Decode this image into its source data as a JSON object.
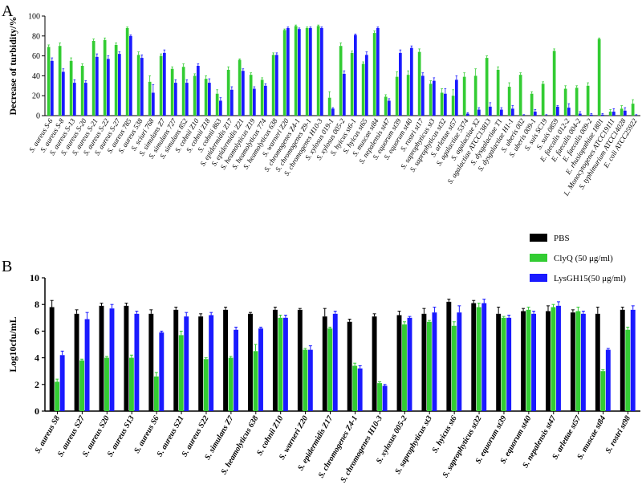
{
  "chart_data": [
    {
      "panel": "A",
      "type": "bar",
      "ylabel": "Decrease of turbidity/%",
      "ylim": [
        0,
        100
      ],
      "yticks": [
        0,
        20,
        40,
        60,
        80,
        100
      ],
      "categories": [
        "S. aureus S-6",
        "S. aureus S-8",
        "S. aureus S-13",
        "S. aureus S-20",
        "S. aureus S-21",
        "S. aureus S-22",
        "S. aureus S-27",
        "S. aureus 785",
        "S. aureus 538",
        "S. sciuri 768",
        "S. simulans Z7",
        "S. simulans 727",
        "S. simulans 852",
        "S. cohnii Z10",
        "S. cohnii Z18",
        "S. cohnii 863",
        "S. epidermidis Z17",
        "S. epidermidis Z21",
        "S. heamolyticus Z19",
        "S. heamolyticus 774",
        "S. heamolyticus 638",
        "S. warneri Z20",
        "S. chromogenes Z4-1",
        "S. chromogenes Z9-1",
        "S. chromogenes H10-3",
        "S. xylosus 019-1",
        "S. xylosus 005-2",
        "S. hyicus st6-1",
        "S. hyicus st65",
        "S. muscae st84",
        "S. nepalensis st47",
        "S. equorum st39",
        "S. equorum st40",
        "S. rostri st17",
        "S. saprophyticus st3",
        "S. saprophyticus st32",
        "S. arlettae st57",
        "S. agalactiae 5374",
        "S. agalactiae X2",
        "S. agalactiae ATCC13813",
        "S. dysgalactiae T1",
        "S. dysgalactiae H1-1",
        "S. uberis 002",
        "S. uberis 009-1",
        "S. suis SC19",
        "S. suis 0859",
        "E. faecalis 012-2",
        "E. faecalis 004-2",
        "E. faecalis 009-2",
        "E. rhusiopathiae 1801",
        "L. Monocytogenes ATCC19111",
        "S. typhimurium ATCC14028",
        "E. coli ATCC25922"
      ],
      "series": [
        {
          "values": [
            69,
            70,
            55,
            50,
            75,
            76,
            71,
            88,
            61,
            34,
            60,
            47,
            49,
            40,
            37,
            22,
            46,
            56,
            41,
            36,
            61,
            86,
            90,
            88,
            90,
            18,
            70,
            63,
            52,
            83,
            19,
            39,
            41,
            64,
            32,
            23,
            20,
            39,
            40,
            58,
            46,
            29,
            41,
            22,
            32,
            65,
            27,
            28,
            30,
            77,
            4,
            7,
            12
          ],
          "errors": [
            2,
            3,
            3,
            2,
            2,
            2,
            2,
            1,
            3,
            6,
            2,
            2,
            3,
            2,
            3,
            4,
            3,
            1,
            2,
            2,
            2,
            1,
            1,
            1,
            1,
            6,
            3,
            2,
            2,
            2,
            2,
            5,
            4,
            3,
            3,
            4,
            6,
            4,
            7,
            2,
            3,
            4,
            2,
            2,
            2,
            2,
            3,
            2,
            3,
            1,
            2,
            3,
            4
          ]
        },
        {
          "values": [
            55,
            44,
            33,
            33,
            59,
            57,
            62,
            80,
            58,
            23,
            63,
            33,
            33,
            50,
            33,
            15,
            26,
            45,
            27,
            30,
            61,
            88,
            87,
            88,
            88,
            7,
            42,
            81,
            61,
            88,
            15,
            63,
            68,
            40,
            35,
            22,
            36,
            2,
            6,
            9,
            6,
            7,
            0,
            4,
            0,
            9,
            8,
            2,
            1,
            1,
            4,
            5,
            0
          ],
          "errors": [
            3,
            3,
            3,
            2,
            3,
            3,
            2,
            1,
            3,
            8,
            3,
            3,
            3,
            2,
            4,
            3,
            3,
            2,
            2,
            2,
            2,
            1,
            1,
            1,
            1,
            1,
            3,
            1,
            3,
            1,
            2,
            3,
            2,
            3,
            3,
            5,
            4,
            1,
            2,
            4,
            2,
            3,
            1,
            2,
            1,
            1,
            4,
            2,
            1,
            1,
            3,
            3,
            1
          ]
        }
      ]
    },
    {
      "panel": "B",
      "type": "bar",
      "ylabel": "Log10cfu/mL",
      "ylim": [
        0,
        10
      ],
      "yticks": [
        0,
        2,
        4,
        6,
        8,
        10
      ],
      "legend_position": "top-right",
      "categories": [
        "S. aureus S8",
        "S. aureus S27",
        "S. aureus S20",
        "S. aureus S13",
        "S. aureus S6",
        "S. aureus S21",
        "S. aureus S22",
        "S. simulans Z7",
        "S. heamolyticus 638",
        "S. cohnii Z10",
        "S. warneri Z20",
        "S. epidermidis Z17",
        "S. chromogenes Z4-1",
        "S. chromogenes H10-3",
        "S. xylosus 005-2",
        "S. saprophyticus st3",
        "S. hyicus st6",
        "S. saprophyticus st32",
        "S. equorum st39",
        "S. equorum st40",
        "S. nepalensis st47",
        "S. arlettae st57",
        "S. muscae st84",
        "S. rostri st98"
      ],
      "series": [
        {
          "name": "PBS",
          "values": [
            7.8,
            7.3,
            7.9,
            7.9,
            7.3,
            7.6,
            7.1,
            7.6,
            7.3,
            7.6,
            7.6,
            7.1,
            6.7,
            7.1,
            7.2,
            7.3,
            8.2,
            8.1,
            7.3,
            7.5,
            7.5,
            7.4,
            7.3,
            7.6
          ],
          "errors": [
            0.5,
            0.3,
            0.2,
            0.2,
            0.3,
            0.2,
            0.2,
            0.2,
            0.1,
            0.2,
            0.1,
            0.6,
            0.2,
            0.2,
            0.3,
            0.4,
            0.2,
            0.2,
            0.5,
            0.2,
            0.4,
            0.2,
            0.5,
            0.2
          ]
        },
        {
          "name": "ClyQ (50 μg/ml)",
          "values": [
            2.2,
            3.8,
            4.0,
            4.0,
            2.6,
            5.7,
            3.9,
            4.0,
            4.5,
            7.0,
            4.6,
            6.2,
            3.4,
            2.1,
            6.5,
            6.7,
            6.4,
            7.8,
            7.0,
            7.6,
            7.8,
            7.5,
            3.0,
            6.1
          ],
          "errors": [
            0.2,
            0.1,
            0.1,
            0.2,
            0.3,
            0.3,
            0.1,
            0.1,
            0.5,
            0.2,
            0.1,
            0.1,
            0.2,
            0.1,
            0.2,
            0.1,
            0.3,
            0.3,
            0.1,
            0.2,
            0.2,
            0.3,
            0.1,
            0.2
          ]
        },
        {
          "name": "LysGH15(50 μg/ml)",
          "values": [
            4.2,
            6.9,
            7.7,
            7.3,
            5.9,
            7.1,
            7.2,
            6.1,
            6.2,
            7.0,
            4.6,
            7.3,
            3.2,
            1.9,
            7.0,
            7.4,
            7.4,
            8.1,
            7.0,
            7.3,
            7.9,
            7.3,
            4.6,
            7.6
          ],
          "errors": [
            0.3,
            0.5,
            0.3,
            0.2,
            0.1,
            0.3,
            0.2,
            0.2,
            0.1,
            0.2,
            0.3,
            0.2,
            0.2,
            0.1,
            0.1,
            0.4,
            0.5,
            0.3,
            0.2,
            0.2,
            0.3,
            0.2,
            0.1,
            0.3
          ]
        }
      ]
    }
  ],
  "colors": {
    "pbs": "#000000",
    "clyq": "#33cc33",
    "lysgh15": "#1a1aff"
  },
  "labels": {
    "panel_a": "A",
    "panel_b": "B"
  }
}
